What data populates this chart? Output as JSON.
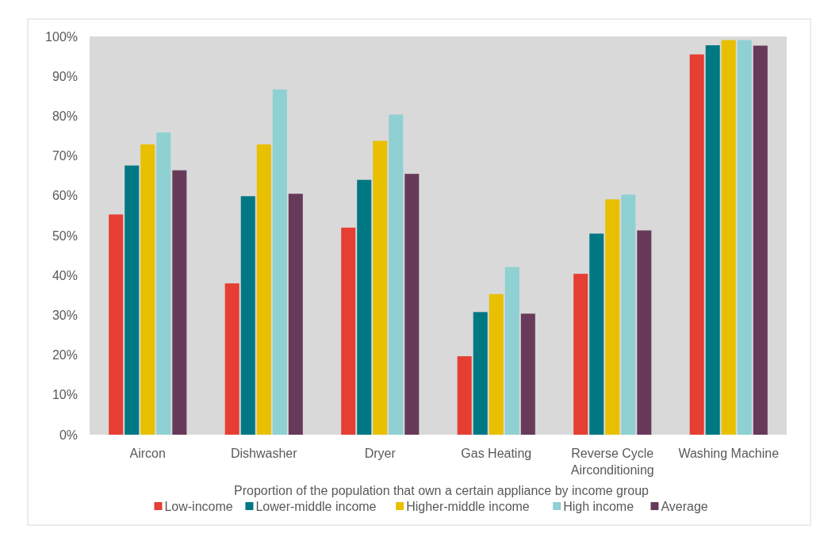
{
  "chart_data": {
    "type": "bar",
    "categories": [
      "Aircon",
      "Dishwasher",
      "Dryer",
      "Gas Heating",
      "Reverse Cycle Airconditioning",
      "Washing Machine"
    ],
    "xlabel": "Proportion of the population that own a certain appliance by income group",
    "ylim": [
      0,
      100
    ],
    "yticks": [
      {
        "value": 0,
        "label": "0%"
      },
      {
        "value": 10,
        "label": "10%"
      },
      {
        "value": 20,
        "label": "20%"
      },
      {
        "value": 30,
        "label": "30%"
      },
      {
        "value": 40,
        "label": "40%"
      },
      {
        "value": 50,
        "label": "50%"
      },
      {
        "value": 60,
        "label": "60%"
      },
      {
        "value": 70,
        "label": "70%"
      },
      {
        "value": 80,
        "label": "80%"
      },
      {
        "value": 90,
        "label": "90%"
      },
      {
        "value": 100,
        "label": "100%"
      }
    ],
    "legend": "bottom",
    "series": [
      {
        "name": "Low-income",
        "color": "#e63e33",
        "values": [
          55.3,
          38.0,
          52.0,
          19.7,
          40.4,
          95.5
        ]
      },
      {
        "name": "Lower-middle income",
        "color": "#007884",
        "values": [
          67.6,
          59.9,
          64.0,
          30.8,
          50.5,
          97.8
        ]
      },
      {
        "name": "Higher-middle income",
        "color": "#e8c000",
        "values": [
          72.9,
          72.9,
          73.8,
          35.3,
          59.1,
          99.1
        ]
      },
      {
        "name": "High income",
        "color": "#8fd0d2",
        "values": [
          75.9,
          86.7,
          80.4,
          42.1,
          60.3,
          99.1
        ]
      },
      {
        "name": "Average",
        "color": "#673a5a",
        "values": [
          66.4,
          60.5,
          65.5,
          30.4,
          51.3,
          97.7
        ]
      }
    ]
  }
}
